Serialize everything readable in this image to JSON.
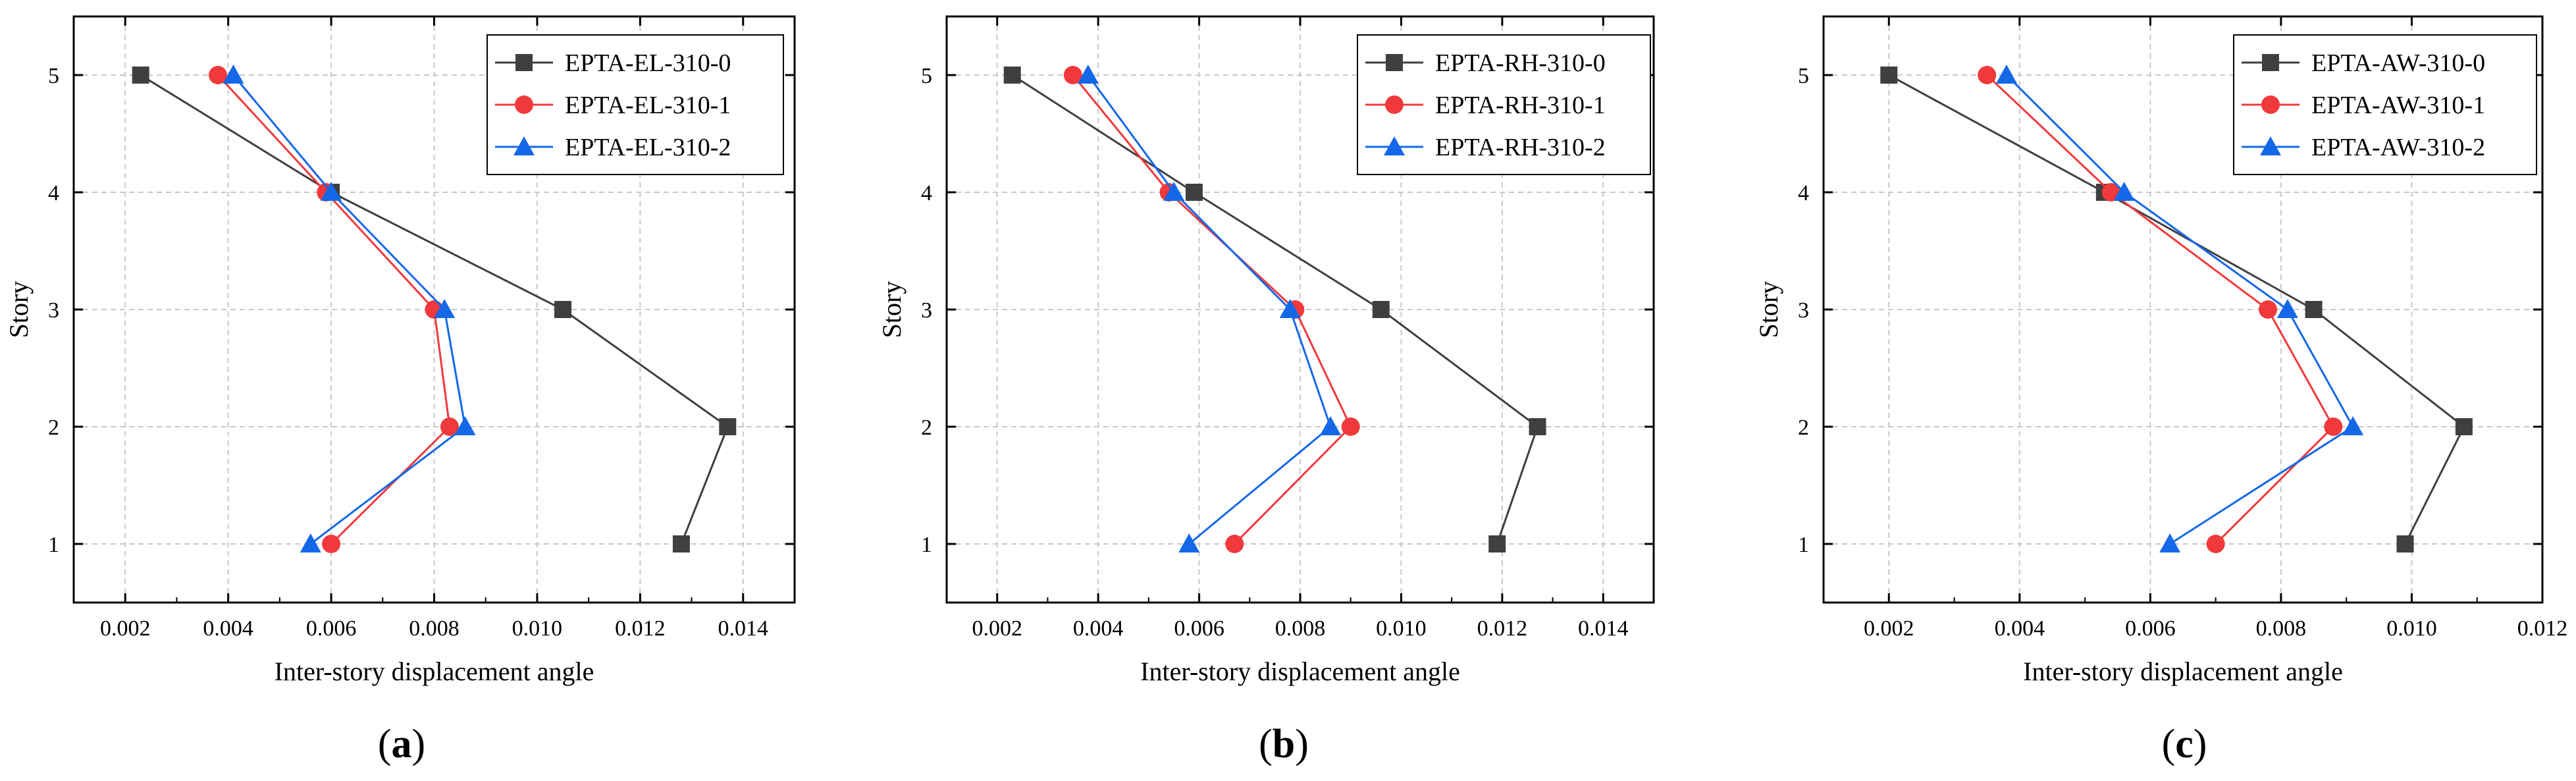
{
  "figure": {
    "panel_labels": [
      "a",
      "b",
      "c"
    ]
  },
  "colors": {
    "series0": "#3f3f3f",
    "series1": "#f0393b",
    "series2": "#1468e8",
    "grid": "#c8c8c8",
    "axis": "#000000"
  },
  "chart_data": [
    {
      "type": "line",
      "panel": "a",
      "xlabel": "Inter-story displacement angle",
      "ylabel": "Story",
      "xlim": [
        0.001,
        0.015
      ],
      "ylim": [
        0.5,
        5.5
      ],
      "x_ticks": [
        0.002,
        0.004,
        0.006,
        0.008,
        0.01,
        0.012,
        0.014
      ],
      "x_tick_labels": [
        "0.002",
        "0.004",
        "0.006",
        "0.008",
        "0.010",
        "0.012",
        "0.014"
      ],
      "y_ticks": [
        1,
        2,
        3,
        4,
        5
      ],
      "y_tick_labels": [
        "1",
        "2",
        "3",
        "4",
        "5"
      ],
      "grid": true,
      "legend_position": "top-right",
      "series": [
        {
          "name": "EPTA-EL-310-0",
          "marker": "square",
          "x": [
            0.0128,
            0.0137,
            0.0105,
            0.006,
            0.0023
          ],
          "y": [
            1,
            2,
            3,
            4,
            5
          ]
        },
        {
          "name": "EPTA-EL-310-1",
          "marker": "circle",
          "x": [
            0.006,
            0.0083,
            0.008,
            0.0059,
            0.0038
          ],
          "y": [
            1,
            2,
            3,
            4,
            5
          ]
        },
        {
          "name": "EPTA-EL-310-2",
          "marker": "triangle",
          "x": [
            0.0056,
            0.0086,
            0.0082,
            0.006,
            0.0041
          ],
          "y": [
            1,
            2,
            3,
            4,
            5
          ]
        }
      ]
    },
    {
      "type": "line",
      "panel": "b",
      "xlabel": "Inter-story displacement angle",
      "ylabel": "Story",
      "xlim": [
        0.001,
        0.015
      ],
      "ylim": [
        0.5,
        5.5
      ],
      "x_ticks": [
        0.002,
        0.004,
        0.006,
        0.008,
        0.01,
        0.012,
        0.014
      ],
      "x_tick_labels": [
        "0.002",
        "0.004",
        "0.006",
        "0.008",
        "0.010",
        "0.012",
        "0.014"
      ],
      "y_ticks": [
        1,
        2,
        3,
        4,
        5
      ],
      "y_tick_labels": [
        "1",
        "2",
        "3",
        "4",
        "5"
      ],
      "grid": true,
      "legend_position": "top-right",
      "series": [
        {
          "name": "EPTA-RH-310-0",
          "marker": "square",
          "x": [
            0.0119,
            0.0127,
            0.0096,
            0.0059,
            0.0023
          ],
          "y": [
            1,
            2,
            3,
            4,
            5
          ]
        },
        {
          "name": "EPTA-RH-310-1",
          "marker": "circle",
          "x": [
            0.0067,
            0.009,
            0.0079,
            0.0054,
            0.0035
          ],
          "y": [
            1,
            2,
            3,
            4,
            5
          ]
        },
        {
          "name": "EPTA-RH-310-2",
          "marker": "triangle",
          "x": [
            0.0058,
            0.0086,
            0.0078,
            0.0055,
            0.0038
          ],
          "y": [
            1,
            2,
            3,
            4,
            5
          ]
        }
      ]
    },
    {
      "type": "line",
      "panel": "c",
      "xlabel": "Inter-story displacement angle",
      "ylabel": "Story",
      "xlim": [
        0.001,
        0.012
      ],
      "ylim": [
        0.5,
        5.5
      ],
      "x_ticks": [
        0.002,
        0.004,
        0.006,
        0.008,
        0.01,
        0.012
      ],
      "x_tick_labels": [
        "0.002",
        "0.004",
        "0.006",
        "0.008",
        "0.010",
        "0.012"
      ],
      "y_ticks": [
        1,
        2,
        3,
        4,
        5
      ],
      "y_tick_labels": [
        "1",
        "2",
        "3",
        "4",
        "5"
      ],
      "grid": true,
      "legend_position": "top-right",
      "series": [
        {
          "name": "EPTA-AW-310-0",
          "marker": "square",
          "x": [
            0.0099,
            0.0108,
            0.0085,
            0.0053,
            0.002
          ],
          "y": [
            1,
            2,
            3,
            4,
            5
          ]
        },
        {
          "name": "EPTA-AW-310-1",
          "marker": "circle",
          "x": [
            0.007,
            0.0088,
            0.0078,
            0.0054,
            0.0035
          ],
          "y": [
            1,
            2,
            3,
            4,
            5
          ]
        },
        {
          "name": "EPTA-AW-310-2",
          "marker": "triangle",
          "x": [
            0.0063,
            0.0091,
            0.0081,
            0.0056,
            0.0038
          ],
          "y": [
            1,
            2,
            3,
            4,
            5
          ]
        }
      ]
    }
  ]
}
